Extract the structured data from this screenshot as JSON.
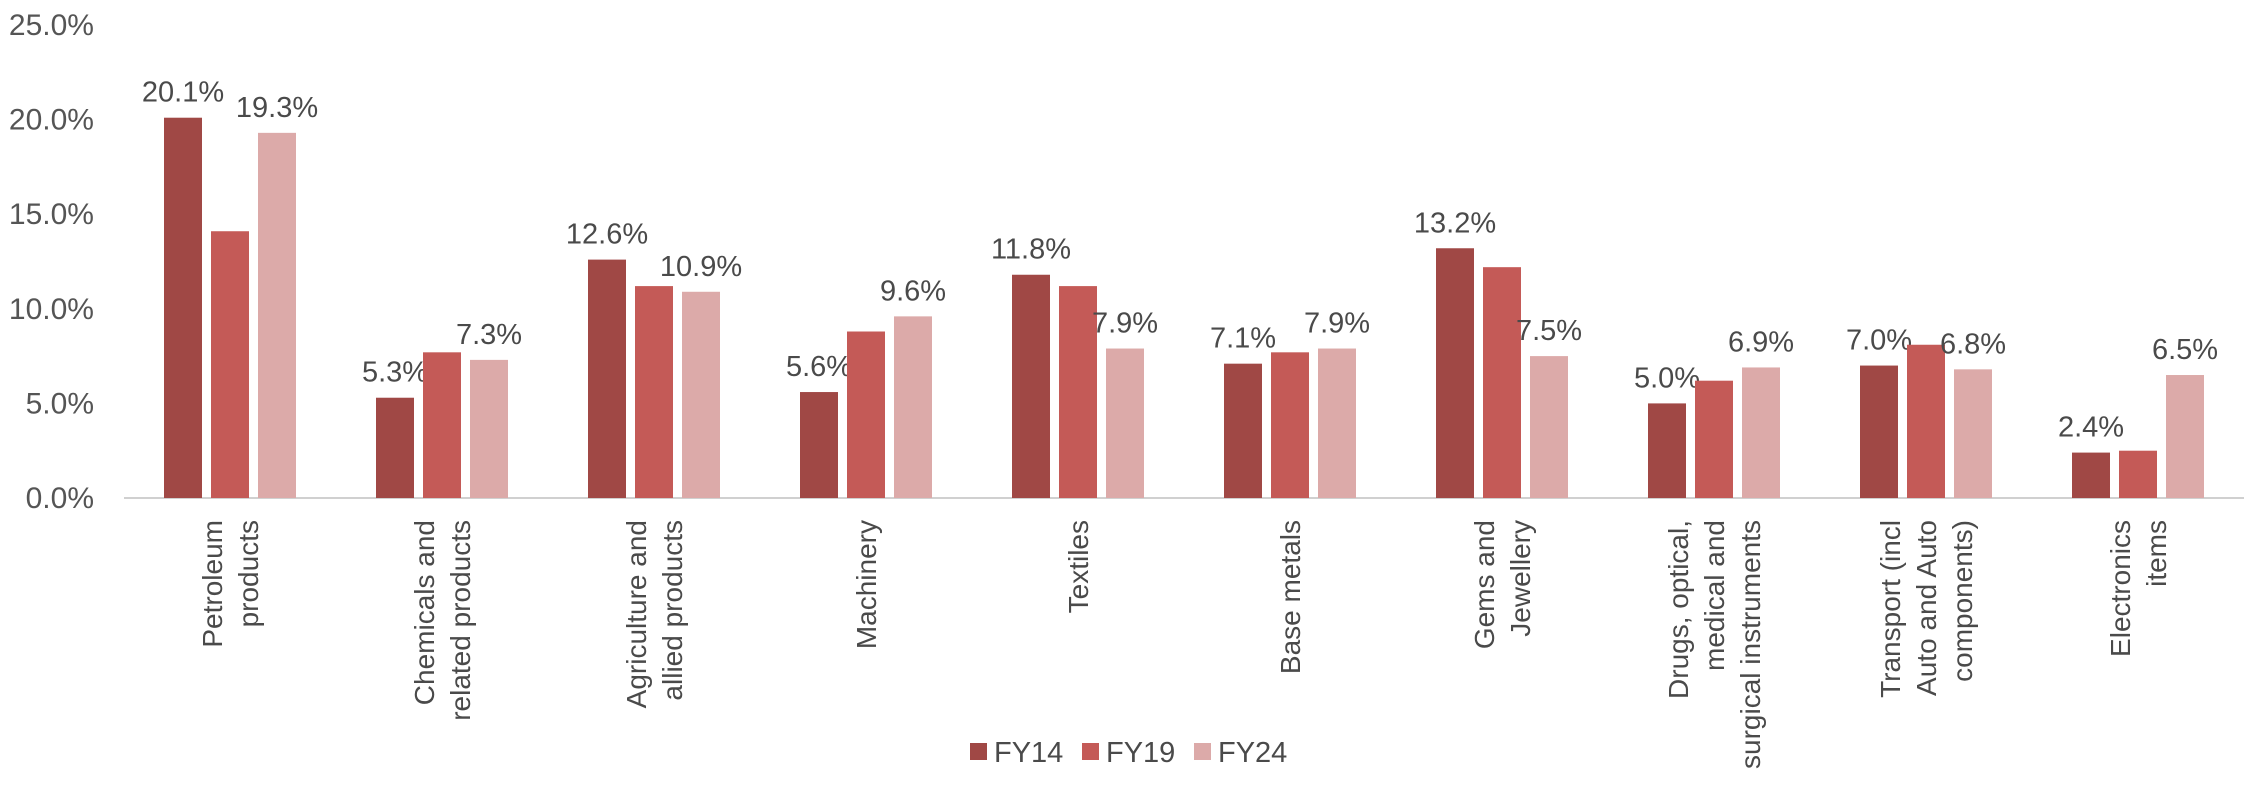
{
  "chart_data": {
    "type": "bar",
    "categories": [
      [
        "Petroleum",
        "products"
      ],
      [
        "Chemicals and",
        "related products"
      ],
      [
        "Agriculture and",
        "allied products"
      ],
      [
        "Machinery"
      ],
      [
        "Textiles"
      ],
      [
        "Base metals"
      ],
      [
        "Gems and",
        "Jewellery"
      ],
      [
        "Drugs, optical,",
        "medical and",
        "surgical instruments"
      ],
      [
        "Transport (incl",
        "Auto and Auto",
        "components)"
      ],
      [
        "Electronics",
        "items"
      ]
    ],
    "series": [
      {
        "name": "FY14",
        "color": "#a04845",
        "values": [
          20.1,
          5.3,
          12.6,
          5.6,
          11.8,
          7.1,
          13.2,
          5.0,
          7.0,
          2.4
        ],
        "labels": [
          "20.1%",
          "5.3%",
          "12.6%",
          "5.6%",
          "11.8%",
          "7.1%",
          "13.2%",
          "5.0%",
          "7.0%",
          "2.4%"
        ]
      },
      {
        "name": "FY19",
        "color": "#c45a57",
        "values": [
          14.1,
          7.7,
          11.2,
          8.8,
          11.2,
          7.7,
          12.2,
          6.2,
          8.1,
          2.5
        ],
        "labels": [
          "",
          "",
          "",
          "",
          "",
          "",
          "",
          "",
          "",
          ""
        ]
      },
      {
        "name": "FY24",
        "color": "#dcaaa9",
        "values": [
          19.3,
          7.3,
          10.9,
          9.6,
          7.9,
          7.9,
          7.5,
          6.9,
          6.8,
          6.5
        ],
        "labels": [
          "19.3%",
          "7.3%",
          "10.9%",
          "9.6%",
          "7.9%",
          "7.9%",
          "7.5%",
          "6.9%",
          "6.8%",
          "6.5%"
        ]
      }
    ],
    "yticks": [
      "0.0%",
      "5.0%",
      "10.0%",
      "15.0%",
      "20.0%",
      "25.0%"
    ],
    "ylim": [
      0,
      25
    ],
    "title": "",
    "xlabel": "",
    "ylabel": "",
    "grid": false,
    "legend": "bottom-center"
  }
}
